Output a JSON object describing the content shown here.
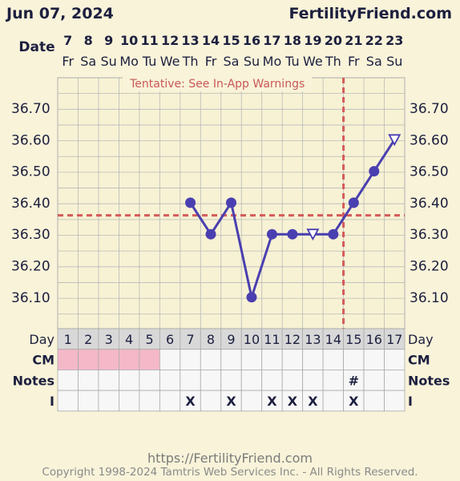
{
  "header": {
    "date": "Jun 07, 2024",
    "site": "FertilityFriend.com"
  },
  "chart_data": {
    "type": "line",
    "title": "",
    "date_row_label": "Date",
    "dates": [
      "7",
      "8",
      "9",
      "10",
      "11",
      "12",
      "13",
      "14",
      "15",
      "16",
      "17",
      "18",
      "19",
      "20",
      "21",
      "22",
      "23"
    ],
    "weekdays": [
      "Fr",
      "Sa",
      "Su",
      "Mo",
      "Tu",
      "We",
      "Th",
      "Fr",
      "Sa",
      "Su",
      "Mo",
      "Tu",
      "We",
      "Th",
      "Fr",
      "Sa",
      "Su"
    ],
    "cycle_days": [
      "1",
      "2",
      "3",
      "4",
      "5",
      "6",
      "7",
      "8",
      "9",
      "10",
      "11",
      "12",
      "13",
      "14",
      "15",
      "16",
      "17"
    ],
    "y_ticks": [
      "36.70",
      "36.60",
      "36.50",
      "36.40",
      "36.30",
      "36.20",
      "36.10"
    ],
    "ylim": [
      36.0,
      36.8
    ],
    "grid": true,
    "warning": "Tentative: See In-App Warnings",
    "coverline": 36.36,
    "ovulation_day": 14,
    "temperatures": [
      {
        "day": 7,
        "value": 36.4,
        "marker": "filled"
      },
      {
        "day": 8,
        "value": 36.3,
        "marker": "filled"
      },
      {
        "day": 9,
        "value": 36.4,
        "marker": "filled"
      },
      {
        "day": 10,
        "value": 36.1,
        "marker": "filled"
      },
      {
        "day": 11,
        "value": 36.3,
        "marker": "filled"
      },
      {
        "day": 12,
        "value": 36.3,
        "marker": "filled"
      },
      {
        "day": 13,
        "value": 36.3,
        "marker": "open-triangle"
      },
      {
        "day": 14,
        "value": 36.3,
        "marker": "filled"
      },
      {
        "day": 15,
        "value": 36.4,
        "marker": "filled"
      },
      {
        "day": 16,
        "value": 36.5,
        "marker": "filled"
      },
      {
        "day": 17,
        "value": 36.6,
        "marker": "open-triangle"
      }
    ],
    "rows": {
      "day_label": "Day",
      "cm_label": "CM",
      "notes_label": "Notes",
      "i_label": "I",
      "cm_pink_days": [
        1,
        2,
        3,
        4,
        5
      ],
      "notes": [
        {
          "day": 15,
          "text": "#"
        }
      ],
      "i_marks": [
        {
          "day": 7,
          "text": "X"
        },
        {
          "day": 9,
          "text": "X"
        },
        {
          "day": 11,
          "text": "X"
        },
        {
          "day": 12,
          "text": "X"
        },
        {
          "day": 13,
          "text": "X"
        },
        {
          "day": 15,
          "text": "X"
        }
      ]
    },
    "colors": {
      "line": "#4a3fb0",
      "coverline": "#d65a5a",
      "grid": "#b9b9b9",
      "cm_pink": "#f4b8c8",
      "background": "#f8f3d9"
    }
  },
  "footer": {
    "url": "https://FertilityFriend.com",
    "copyright": "Copyright 1998-2024 Tamtris Web Services Inc. - All Rights Reserved."
  }
}
